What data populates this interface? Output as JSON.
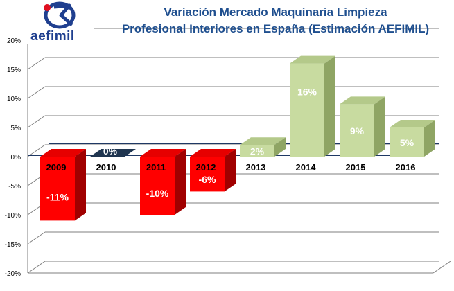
{
  "title_lines": [
    "Variación Mercado Maquinaria Limpieza",
    "Profesional Interiores en España (Estimación AEFIMIL)"
  ],
  "logo": {
    "text": "aefimil",
    "icon": "aefimil-logo-icon"
  },
  "colors": {
    "negative": "#ff0000",
    "negative_top": "#e60000",
    "negative_side": "#a00000",
    "zero": "#1f3550",
    "positive": "#c8dba0",
    "positive_top": "#b4c98a",
    "positive_side": "#8fa564",
    "grid": "#7f7f7f",
    "axis_line": "#1f3864",
    "title": "#1f4f8f"
  },
  "chart_data": {
    "type": "bar",
    "title": "Variación Mercado Maquinaria Limpieza Profesional Interiores en España (Estimación AEFIMIL)",
    "categories": [
      "2009",
      "2010",
      "2011",
      "2012",
      "2013",
      "2014",
      "2015",
      "2016"
    ],
    "values": [
      -11,
      0,
      -10,
      -6,
      2,
      16,
      9,
      5
    ],
    "data_labels": [
      "-11%",
      "0%",
      "-10%",
      "-6%",
      "2%",
      "16%",
      "9%",
      "5%"
    ],
    "y_ticks": [
      "20%",
      "15%",
      "10%",
      "5%",
      "0%",
      "-5%",
      "-10%",
      "-15%",
      "-20%"
    ],
    "ylim": [
      -20,
      20
    ],
    "grid": true,
    "xlabel": "",
    "ylabel": ""
  }
}
